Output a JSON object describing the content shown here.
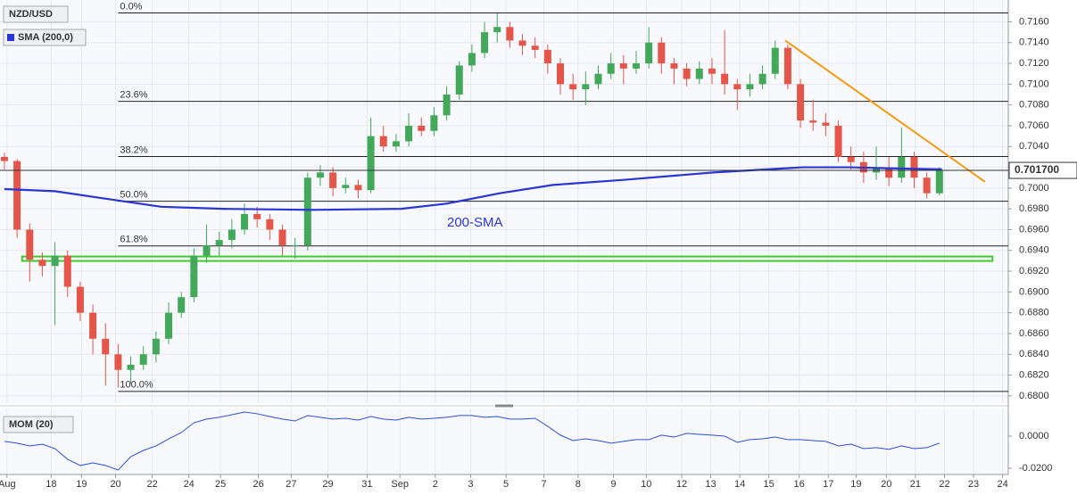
{
  "chart_data": [
    {
      "type": "candlestick",
      "title": "NZD/USD",
      "up_color": "#43a85a",
      "down_color": "#e4564a",
      "grid": true,
      "xlim": [
        -0.35,
        79.45
      ],
      "ylim": [
        0.6793,
        0.7181
      ],
      "xticks": [
        {
          "value": 0.2,
          "label": "Aug"
        },
        {
          "value": 3.7,
          "label": "18"
        },
        {
          "value": 6.1,
          "label": "19"
        },
        {
          "value": 8.8,
          "label": "20"
        },
        {
          "value": 11.7,
          "label": "22"
        },
        {
          "value": 14.6,
          "label": "24"
        },
        {
          "value": 17.1,
          "label": "25"
        },
        {
          "value": 20.1,
          "label": "26"
        },
        {
          "value": 22.7,
          "label": "27"
        },
        {
          "value": 25.6,
          "label": "29"
        },
        {
          "value": 28.7,
          "label": "31"
        },
        {
          "value": 31.3,
          "label": "Sep"
        },
        {
          "value": 34.1,
          "label": "2"
        },
        {
          "value": 36.9,
          "label": "3"
        },
        {
          "value": 39.7,
          "label": "5"
        },
        {
          "value": 42.7,
          "label": "7"
        },
        {
          "value": 45.4,
          "label": "8"
        },
        {
          "value": 48.2,
          "label": "9"
        },
        {
          "value": 50.8,
          "label": "10"
        },
        {
          "value": 53.6,
          "label": "12"
        },
        {
          "value": 55.9,
          "label": "13"
        },
        {
          "value": 58.2,
          "label": "14"
        },
        {
          "value": 60.5,
          "label": "15"
        },
        {
          "value": 62.9,
          "label": "16"
        },
        {
          "value": 65.2,
          "label": "17"
        },
        {
          "value": 67.4,
          "label": "19"
        },
        {
          "value": 69.8,
          "label": "20"
        },
        {
          "value": 72.1,
          "label": "21"
        },
        {
          "value": 74.4,
          "label": "22"
        },
        {
          "value": 76.7,
          "label": "23"
        },
        {
          "value": 79,
          "label": "24"
        }
      ],
      "yticks": [
        {
          "value": 0.68,
          "label": "0.6800"
        },
        {
          "value": 0.682,
          "label": "0.6820"
        },
        {
          "value": 0.684,
          "label": "0.6840"
        },
        {
          "value": 0.686,
          "label": "0.6860"
        },
        {
          "value": 0.688,
          "label": "0.6880"
        },
        {
          "value": 0.69,
          "label": "0.6900"
        },
        {
          "value": 0.692,
          "label": "0.6920"
        },
        {
          "value": 0.694,
          "label": "0.6940"
        },
        {
          "value": 0.696,
          "label": "0.6960"
        },
        {
          "value": 0.698,
          "label": "0.6980"
        },
        {
          "value": 0.7,
          "label": "0.7000"
        },
        {
          "value": 0.702,
          "label": "0.7020"
        },
        {
          "value": 0.704,
          "label": "0.7040"
        },
        {
          "value": 0.706,
          "label": "0.7060"
        },
        {
          "value": 0.708,
          "label": "0.7080"
        },
        {
          "value": 0.71,
          "label": "0.7100"
        },
        {
          "value": 0.712,
          "label": "0.7120"
        },
        {
          "value": 0.714,
          "label": "0.7140"
        },
        {
          "value": 0.716,
          "label": "0.7160"
        }
      ],
      "current_price": {
        "value": 0.7017,
        "label": "0.701700"
      },
      "candles": {
        "open": [
          0.703,
          0.7026,
          0.696,
          0.6931,
          0.6925,
          0.6935,
          0.6905,
          0.688,
          0.6855,
          0.684,
          0.6825,
          0.683,
          0.684,
          0.6855,
          0.688,
          0.6895,
          0.6935,
          0.6945,
          0.695,
          0.696,
          0.6975,
          0.697,
          0.696,
          0.6945,
          0.6945,
          0.701,
          0.7015,
          0.7,
          0.7003,
          0.6998,
          0.705,
          0.704,
          0.7045,
          0.706,
          0.7055,
          0.707,
          0.709,
          0.7118,
          0.713,
          0.715,
          0.7155,
          0.7142,
          0.7137,
          0.7133,
          0.712,
          0.71,
          0.7095,
          0.71,
          0.711,
          0.712,
          0.7115,
          0.712,
          0.714,
          0.712,
          0.7115,
          0.7105,
          0.7115,
          0.711,
          0.71,
          0.7095,
          0.71,
          0.711,
          0.7135,
          0.71,
          0.7065,
          0.7063,
          0.706,
          0.703,
          0.7025,
          0.7015,
          0.702,
          0.701,
          0.703,
          0.701,
          0.6995
        ],
        "high": [
          0.7034,
          0.7028,
          0.6966,
          0.6938,
          0.6948,
          0.694,
          0.691,
          0.6888,
          0.687,
          0.685,
          0.6838,
          0.6848,
          0.6862,
          0.689,
          0.69,
          0.6942,
          0.6965,
          0.6958,
          0.697,
          0.6985,
          0.6982,
          0.6975,
          0.6965,
          0.6952,
          0.7015,
          0.7022,
          0.702,
          0.701,
          0.7008,
          0.7068,
          0.706,
          0.7052,
          0.7072,
          0.7068,
          0.7078,
          0.7098,
          0.7122,
          0.7138,
          0.716,
          0.7168,
          0.716,
          0.7148,
          0.7145,
          0.7138,
          0.7125,
          0.711,
          0.7112,
          0.7118,
          0.713,
          0.7128,
          0.7132,
          0.7155,
          0.7145,
          0.7125,
          0.712,
          0.7122,
          0.7125,
          0.7152,
          0.7105,
          0.711,
          0.7118,
          0.7142,
          0.7138,
          0.7105,
          0.7085,
          0.7072,
          0.7065,
          0.704,
          0.7035,
          0.704,
          0.703,
          0.7058,
          0.7035,
          0.7015,
          0.702
        ],
        "low": [
          0.7018,
          0.6952,
          0.691,
          0.6915,
          0.6868,
          0.6895,
          0.6872,
          0.684,
          0.681,
          0.6808,
          0.6812,
          0.6825,
          0.6832,
          0.685,
          0.6875,
          0.689,
          0.6928,
          0.6935,
          0.6942,
          0.6955,
          0.6962,
          0.695,
          0.6935,
          0.6932,
          0.694,
          0.7002,
          0.6992,
          0.6995,
          0.699,
          0.6995,
          0.7035,
          0.7035,
          0.704,
          0.705,
          0.705,
          0.7065,
          0.7085,
          0.7112,
          0.7125,
          0.714,
          0.7135,
          0.7128,
          0.7125,
          0.711,
          0.709,
          0.7085,
          0.708,
          0.7095,
          0.7105,
          0.71,
          0.711,
          0.7115,
          0.711,
          0.71,
          0.7098,
          0.71,
          0.71,
          0.709,
          0.7075,
          0.7088,
          0.7095,
          0.7105,
          0.7095,
          0.7058,
          0.7055,
          0.705,
          0.7025,
          0.7018,
          0.7005,
          0.7008,
          0.7002,
          0.7005,
          0.7,
          0.699,
          0.6993
        ],
        "close": [
          0.7026,
          0.696,
          0.6931,
          0.6925,
          0.6935,
          0.6905,
          0.688,
          0.6855,
          0.684,
          0.6825,
          0.683,
          0.684,
          0.6855,
          0.688,
          0.6895,
          0.6935,
          0.6945,
          0.695,
          0.696,
          0.6975,
          0.697,
          0.696,
          0.6945,
          0.6945,
          0.701,
          0.7015,
          0.7,
          0.7003,
          0.6998,
          0.705,
          0.704,
          0.7045,
          0.706,
          0.7055,
          0.707,
          0.709,
          0.7118,
          0.713,
          0.715,
          0.7155,
          0.7142,
          0.7137,
          0.7133,
          0.712,
          0.71,
          0.7095,
          0.71,
          0.711,
          0.712,
          0.7115,
          0.712,
          0.714,
          0.712,
          0.7115,
          0.7105,
          0.7115,
          0.711,
          0.71,
          0.7095,
          0.71,
          0.711,
          0.7135,
          0.71,
          0.7065,
          0.7063,
          0.706,
          0.703,
          0.7025,
          0.7015,
          0.702,
          0.701,
          0.703,
          0.701,
          0.6995,
          0.7017
        ]
      },
      "sma": {
        "name": "SMA (200,0)",
        "label": "200-SMA",
        "color": "#2a35d4",
        "x": [
          0,
          4,
          9,
          12.4,
          17.3,
          24.4,
          31.4,
          35,
          39.2,
          43.4,
          49.1,
          56.1,
          63.2,
          66.8,
          70.3,
          74.2
        ],
        "values": [
          0.6999,
          0.6997,
          0.6988,
          0.6982,
          0.698,
          0.6979,
          0.698,
          0.6985,
          0.6995,
          0.7003,
          0.7008,
          0.7015,
          0.702,
          0.702,
          0.7019,
          0.7018
        ]
      },
      "fibonacci": {
        "x": 9,
        "levels": [
          {
            "label": "0.0%",
            "value": 0.71686
          },
          {
            "label": "23.6%",
            "value": 0.70835
          },
          {
            "label": "38.2%",
            "value": 0.70303
          },
          {
            "label": "50.0%",
            "value": 0.69873
          },
          {
            "label": "61.8%",
            "value": 0.69443
          },
          {
            "label": "100.0%",
            "value": 0.68043
          }
        ]
      },
      "support": {
        "color": "#3ecb2e",
        "x": [
          1.4,
          78.2
        ],
        "value": 0.6932
      },
      "trendline": {
        "color": "#f59a13",
        "x": [
          61.8,
          77.6
        ],
        "values": [
          0.7142,
          0.7006
        ]
      }
    },
    {
      "type": "line",
      "title": "MOM (20)",
      "color": "#2a4fd8",
      "ylim": [
        -0.0239,
        0.0172
      ],
      "yticks": [
        {
          "value": 0,
          "label": "0.0000"
        },
        {
          "value": -0.02,
          "label": "-0.0200"
        }
      ],
      "values": [
        -0.0033,
        -0.0044,
        -0.0061,
        -0.005,
        -0.0078,
        -0.0144,
        -0.0183,
        -0.0167,
        -0.0183,
        -0.0211,
        -0.0128,
        -0.0089,
        -0.0061,
        -0.0017,
        0.0022,
        0.0083,
        0.0106,
        0.0117,
        0.0133,
        0.015,
        0.0139,
        0.0122,
        0.0106,
        0.0094,
        0.0128,
        0.0117,
        0.0106,
        0.0111,
        0.01,
        0.0122,
        0.0106,
        0.01,
        0.0117,
        0.0106,
        0.0111,
        0.0117,
        0.0128,
        0.0128,
        0.0117,
        0.0122,
        0.0106,
        0.0106,
        0.0111,
        0.0061,
        0.0006,
        -0.0028,
        -0.0017,
        -0.0028,
        -0.0044,
        -0.0033,
        -0.0022,
        -0.0022,
        0.0006,
        -0.0006,
        0.0017,
        0.0011,
        0.0006,
        0,
        -0.0039,
        -0.0022,
        -0.0017,
        -0.0006,
        -0.0022,
        -0.0022,
        -0.0028,
        -0.0033,
        -0.0061,
        -0.005,
        -0.0078,
        -0.0072,
        -0.0083,
        -0.0061,
        -0.0078,
        -0.0072,
        -0.0044
      ]
    }
  ]
}
